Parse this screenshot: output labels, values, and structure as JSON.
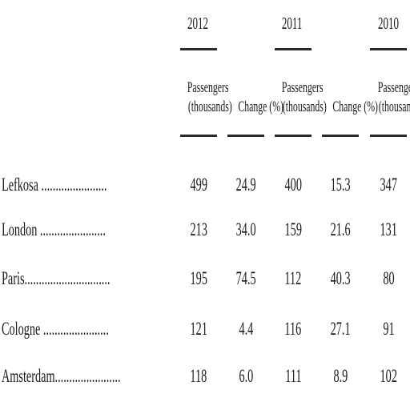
{
  "years": [
    "2012",
    "2011",
    "2010"
  ],
  "headers": {
    "passengers_line1": "Passengers",
    "passengers_line2": "(thousands)",
    "change": "Change (%)"
  },
  "rows": [
    {
      "city": "Lefkosa",
      "leader": "Lefkosa .......................",
      "p2012": "499",
      "c2012": "24.9",
      "p2011": "400",
      "c2011": "15.3",
      "p2010": "347"
    },
    {
      "city": "London",
      "leader": "London .......................",
      "p2012": "213",
      "c2012": "34.0",
      "p2011": "159",
      "c2011": "21.6",
      "p2010": "131"
    },
    {
      "city": "Paris",
      "leader": "Paris..............................",
      "p2012": "195",
      "c2012": "74.5",
      "p2011": "112",
      "c2011": "40.3",
      "p2010": "80"
    },
    {
      "city": "Cologne",
      "leader": "Cologne .......................",
      "p2012": "121",
      "c2012": "4.4",
      "p2011": "116",
      "c2011": "27.1",
      "p2010": "91"
    },
    {
      "city": "Amsterdam",
      "leader": "Amsterdam.......................",
      "p2012": "118",
      "c2012": "6.0",
      "p2011": "111",
      "c2011": "8.9",
      "p2010": "102"
    }
  ]
}
